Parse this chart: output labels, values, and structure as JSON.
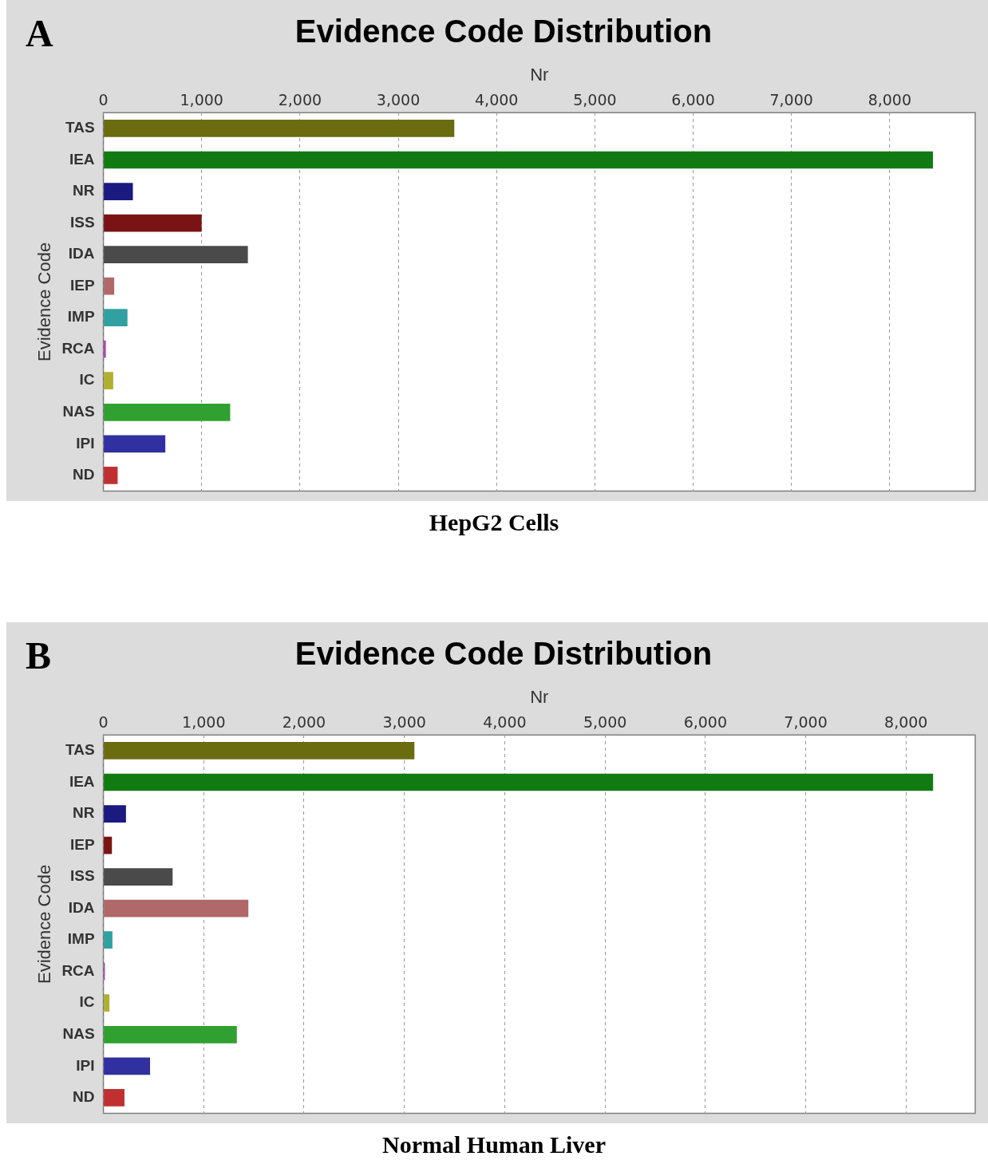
{
  "chart_data": [
    {
      "type": "bar",
      "orientation": "horizontal",
      "title": "Evidence Code Distribution",
      "xlabel": "Nr",
      "ylabel": "Evidence Code",
      "categories": [
        "TAS",
        "IEA",
        "NR",
        "ISS",
        "IDA",
        "IEP",
        "IMP",
        "RCA",
        "IC",
        "NAS",
        "IPI",
        "ND"
      ],
      "values": [
        3570,
        8440,
        300,
        1000,
        1470,
        110,
        245,
        25,
        100,
        1290,
        630,
        145
      ],
      "colors": [
        "#6b6b10",
        "#127a12",
        "#1a1a80",
        "#7a1414",
        "#4a4a4a",
        "#b06868",
        "#30a0a0",
        "#b040b0",
        "#b0b030",
        "#30a030",
        "#3030a0",
        "#c03030"
      ],
      "xlim": [
        0,
        8870
      ],
      "xticks": [
        0,
        {
          "value": 1000,
          "label": "1,000"
        },
        {
          "value": 2000,
          "label": "2,000"
        },
        {
          "value": 3000,
          "label": "3,000"
        },
        {
          "value": 4000,
          "label": "4,000"
        },
        {
          "value": 5000,
          "label": "5,000"
        },
        {
          "value": 6000,
          "label": "6,000"
        },
        {
          "value": 7000,
          "label": "7,000"
        },
        {
          "value": 8000,
          "label": "8,000"
        }
      ],
      "grid": "x",
      "legend": false,
      "annotations": [
        "A",
        "HepG2 Cells"
      ]
    },
    {
      "type": "bar",
      "orientation": "horizontal",
      "title": "Evidence Code Distribution",
      "xlabel": "Nr",
      "ylabel": "Evidence Code",
      "categories": [
        "TAS",
        "IEA",
        "NR",
        "IEP",
        "ISS",
        "IDA",
        "IMP",
        "RCA",
        "IC",
        "NAS",
        "IPI",
        "ND"
      ],
      "values": [
        3100,
        8270,
        225,
        85,
        690,
        1445,
        90,
        15,
        60,
        1330,
        465,
        210
      ],
      "colors": [
        "#6b6b10",
        "#127a12",
        "#1a1a80",
        "#7a1414",
        "#4a4a4a",
        "#b06868",
        "#30a0a0",
        "#b040b0",
        "#b0b030",
        "#30a030",
        "#3030a0",
        "#c03030"
      ],
      "xlim": [
        0,
        8690
      ],
      "xticks": [
        0,
        {
          "value": 1000,
          "label": "1,000"
        },
        {
          "value": 2000,
          "label": "2,000"
        },
        {
          "value": 3000,
          "label": "3,000"
        },
        {
          "value": 4000,
          "label": "4,000"
        },
        {
          "value": 5000,
          "label": "5,000"
        },
        {
          "value": 6000,
          "label": "6,000"
        },
        {
          "value": 7000,
          "label": "7,000"
        },
        {
          "value": 8000,
          "label": "8,000"
        }
      ],
      "grid": "x",
      "legend": false,
      "annotations": [
        "B",
        "Normal Human Liver"
      ]
    }
  ]
}
